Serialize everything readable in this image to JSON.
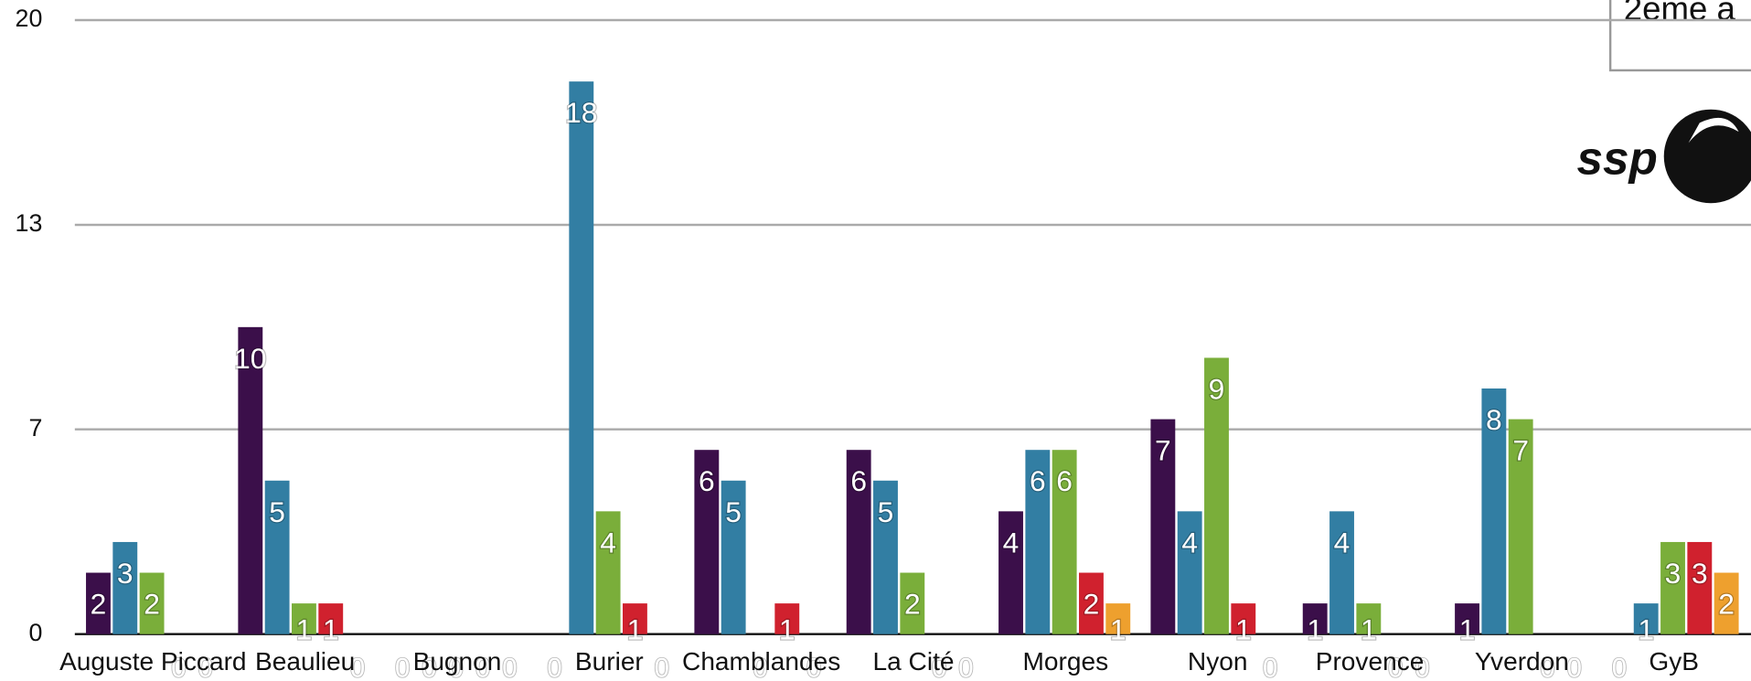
{
  "chart_data": {
    "type": "bar",
    "categories": [
      "Auguste Piccard",
      "Beaulieu",
      "Bugnon",
      "Burier",
      "Chamblandes",
      "La Cité",
      "Morges",
      "Nyon",
      "Provence",
      "Yverdon",
      "GyB"
    ],
    "series": [
      {
        "color": "#3b0f4a",
        "values": [
          2,
          10,
          0,
          0,
          6,
          6,
          4,
          7,
          1,
          1,
          0
        ]
      },
      {
        "color": "#327ea3",
        "values": [
          3,
          5,
          0,
          18,
          5,
          5,
          6,
          4,
          4,
          8,
          1
        ]
      },
      {
        "color": "#7aae3a",
        "values": [
          2,
          1,
          0,
          4,
          0,
          2,
          6,
          9,
          1,
          7,
          3
        ]
      },
      {
        "color": "#d0212e",
        "values": [
          0,
          1,
          0,
          1,
          1,
          0,
          2,
          1,
          0,
          0,
          3
        ]
      },
      {
        "color": "#eea02e",
        "values": [
          0,
          0,
          0,
          0,
          0,
          0,
          1,
          0,
          0,
          0,
          2
        ]
      }
    ],
    "ylim": [
      0,
      20
    ],
    "yticks": [
      0,
      {
        "value": 6.67,
        "label": "7"
      },
      {
        "value": 13.33,
        "label": "13"
      },
      20
    ],
    "grid": true,
    "annotations": {
      "box_text": "2ème a",
      "logo_text": "ssp"
    }
  }
}
